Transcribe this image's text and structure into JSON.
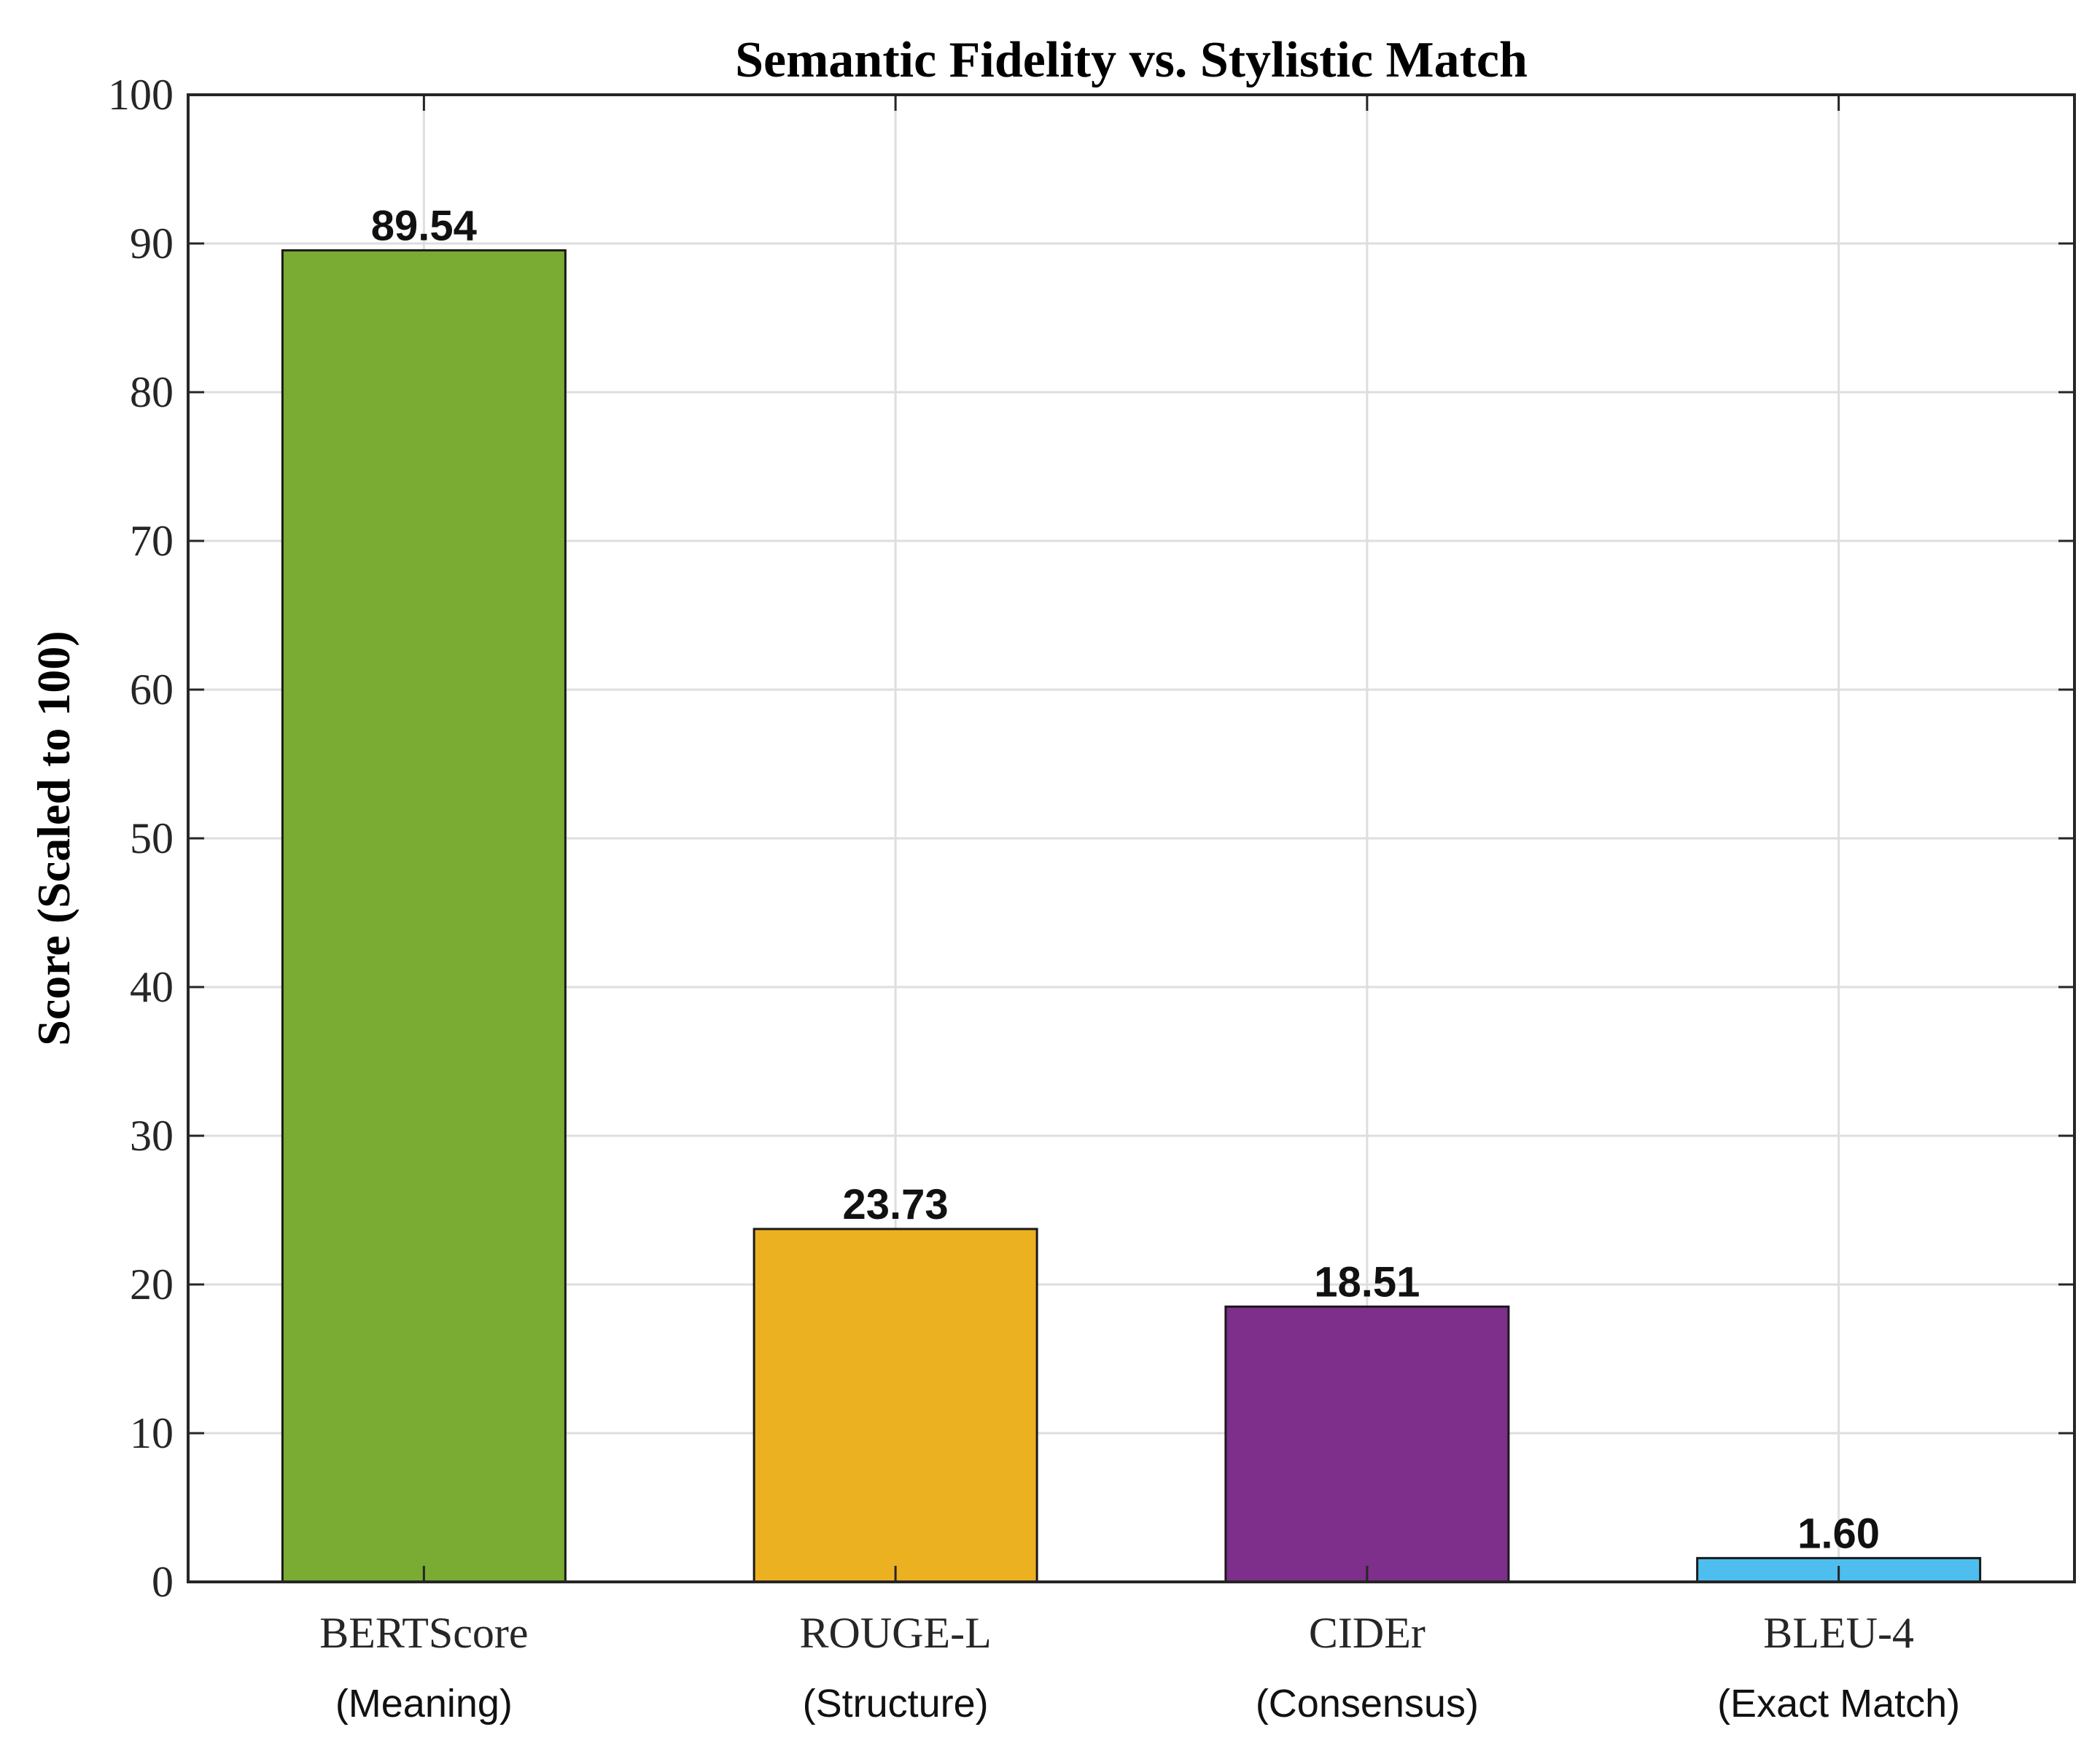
{
  "chart_data": {
    "type": "bar",
    "title": "Semantic Fidelity vs. Stylistic Match",
    "xlabel": "",
    "ylabel": "Score (Scaled to 100)",
    "ylim": [
      0,
      100
    ],
    "yticks": [
      0,
      10,
      20,
      30,
      40,
      50,
      60,
      70,
      80,
      90,
      100
    ],
    "grid": true,
    "categories": [
      "BERTScore",
      "ROUGE-L",
      "CIDEr",
      "BLEU-4"
    ],
    "subcategories": [
      "(Meaning)",
      "(Structure)",
      "(Consensus)",
      "(Exact Match)"
    ],
    "values": [
      89.54,
      23.73,
      18.51,
      1.6
    ],
    "value_labels": [
      "89.54",
      "23.73",
      "18.51",
      "1.60"
    ],
    "colors": [
      "#7aab32",
      "#ecb121",
      "#7e2e8b",
      "#4dbeee"
    ]
  }
}
